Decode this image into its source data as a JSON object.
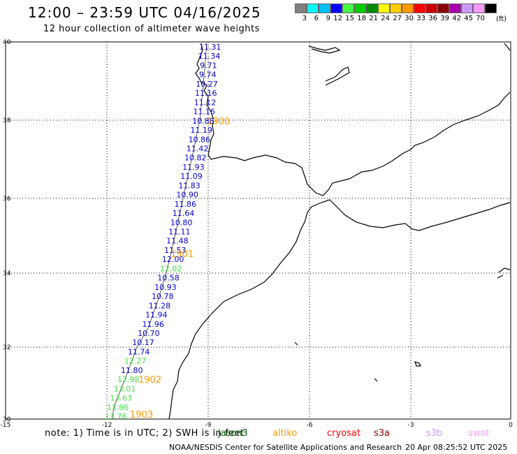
{
  "header": {
    "title": "12:00 – 23:59 UTC 04/16/2025",
    "subtitle": "12 hour collection of altimeter wave heights"
  },
  "color_scale": {
    "labels": [
      "3",
      "6",
      "9",
      "12",
      "15",
      "18",
      "21",
      "24",
      "27",
      "30",
      "33",
      "36",
      "39",
      "42",
      "45",
      "70"
    ],
    "unit": "(ft)",
    "colors": [
      "#808080",
      "#00ffff",
      "#00c0ff",
      "#0000ff",
      "#44ff44",
      "#00cc00",
      "#008800",
      "#ffff00",
      "#ffcc00",
      "#ff9900",
      "#ff0000",
      "#cc0000",
      "#880000",
      "#aa00aa",
      "#cc99ff",
      "#ff99ff",
      "#000000"
    ]
  },
  "axes": {
    "lat_labels": [
      "40",
      "38",
      "36",
      "34",
      "32",
      "30"
    ],
    "lon_labels": [
      "-15",
      "-12",
      "-9",
      "-6",
      "-3",
      "0"
    ]
  },
  "passes": [
    {
      "label": "1900",
      "color": "#ff9900"
    },
    {
      "label": "1901",
      "color": "#ff9900"
    },
    {
      "label": "1902",
      "color": "#ff9900"
    },
    {
      "label": "1903",
      "color": "#ff9900"
    }
  ],
  "track_values": [
    {
      "v": "11.31",
      "c": "#0000cc"
    },
    {
      "v": "11.34",
      "c": "#0000cc"
    },
    {
      "v": "9.71",
      "c": "#0000cc"
    },
    {
      "v": "9.74",
      "c": "#0000cc"
    },
    {
      "v": "10.27",
      "c": "#0000cc"
    },
    {
      "v": "11.16",
      "c": "#0000cc"
    },
    {
      "v": "11.12",
      "c": "#0000cc"
    },
    {
      "v": "11.16",
      "c": "#0000cc"
    },
    {
      "v": "10.88",
      "c": "#0000cc"
    },
    {
      "v": "11.19",
      "c": "#0000cc"
    },
    {
      "v": "10.86",
      "c": "#0000cc"
    },
    {
      "v": "11.42",
      "c": "#0000cc"
    },
    {
      "v": "10.82",
      "c": "#0000cc"
    },
    {
      "v": "11.93",
      "c": "#0000cc"
    },
    {
      "v": "11.09",
      "c": "#0000cc"
    },
    {
      "v": "11.83",
      "c": "#0000cc"
    },
    {
      "v": "10.90",
      "c": "#0000cc"
    },
    {
      "v": "11.86",
      "c": "#0000cc"
    },
    {
      "v": "11.64",
      "c": "#0000cc"
    },
    {
      "v": "10.80",
      "c": "#0000cc"
    },
    {
      "v": "11.11",
      "c": "#0000cc"
    },
    {
      "v": "11.48",
      "c": "#0000cc"
    },
    {
      "v": "11.53",
      "c": "#0000cc"
    },
    {
      "v": "12.00",
      "c": "#0000cc"
    },
    {
      "v": "12.02",
      "c": "#44dd44"
    },
    {
      "v": "10.58",
      "c": "#0000cc"
    },
    {
      "v": "10.93",
      "c": "#0000cc"
    },
    {
      "v": "10.78",
      "c": "#0000cc"
    },
    {
      "v": "11.28",
      "c": "#0000cc"
    },
    {
      "v": "11.94",
      "c": "#0000cc"
    },
    {
      "v": "11.96",
      "c": "#0000cc"
    },
    {
      "v": "10.70",
      "c": "#0000cc"
    },
    {
      "v": "10.17",
      "c": "#0000cc"
    },
    {
      "v": "11.74",
      "c": "#0000cc"
    },
    {
      "v": "12.27",
      "c": "#44dd44"
    },
    {
      "v": "11.80",
      "c": "#0000cc"
    },
    {
      "v": "12.98",
      "c": "#44dd44"
    },
    {
      "v": "13.01",
      "c": "#44dd44"
    },
    {
      "v": "13.63",
      "c": "#44dd44"
    },
    {
      "v": "13.86",
      "c": "#44dd44"
    },
    {
      "v": "13.76",
      "c": "#44dd44"
    }
  ],
  "footer": {
    "note": "note: 1) Time is in UTC; 2) SWH is in feet",
    "missions": [
      {
        "label": "jason3",
        "color": "#006600"
      },
      {
        "label": "altiko",
        "color": "#ff9900"
      },
      {
        "label": "cryosat",
        "color": "#ff0000"
      },
      {
        "label": "s3a",
        "color": "#880000"
      },
      {
        "label": "s3b",
        "color": "#cc99ff"
      },
      {
        "label": "swot",
        "color": "#ff99ff"
      }
    ],
    "source": "NOAA/NESDIS Center for Satellite Applications and Research",
    "generated": "20 Apr 08:25:52 UTC 2025"
  }
}
